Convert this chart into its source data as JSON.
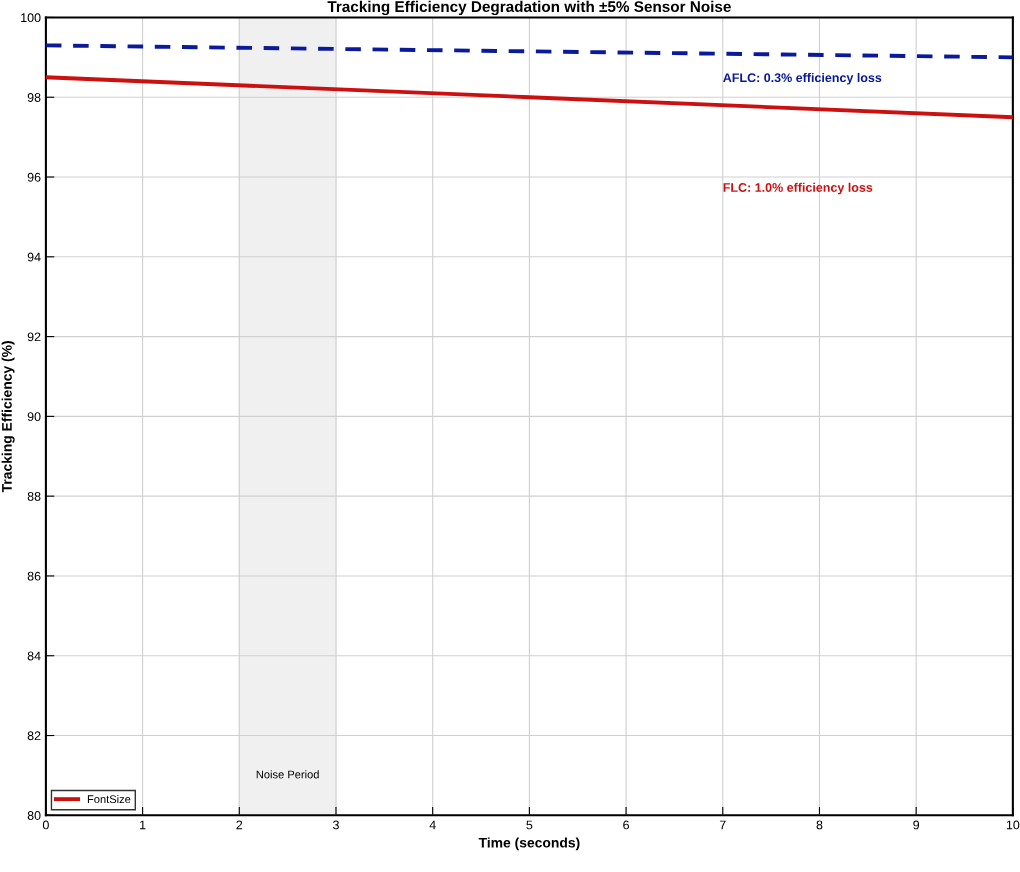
{
  "chart_data": {
    "type": "line",
    "title": "Tracking Efficiency Degradation with ±5% Sensor Noise",
    "xlabel": "Time (seconds)",
    "ylabel": "Tracking Efficiency (%)",
    "x": [
      0,
      5,
      10
    ],
    "series": [
      {
        "color": "#0a1a9a",
        "values": [
          99.3,
          99.15,
          99.0
        ],
        "line_style": "dashed"
      },
      {
        "name": "FontSize",
        "color": "#cc1010",
        "values": [
          98.5,
          98.0,
          97.5
        ],
        "line_style": "solid"
      }
    ],
    "xlim": [
      0,
      10
    ],
    "ylim": [
      80,
      100
    ],
    "xticks": [
      0,
      1,
      2,
      3,
      4,
      5,
      6,
      7,
      8,
      9,
      10
    ],
    "yticks": [
      80,
      82,
      84,
      86,
      88,
      90,
      92,
      94,
      96,
      98,
      100
    ],
    "bands": [
      {
        "axis": "x",
        "from": 2,
        "to": 3,
        "label": "Noise Period",
        "color": "#f0f0f0"
      }
    ],
    "annotations": [
      "AFLC: 0.3% efficiency loss",
      "FLC: 1.0% efficiency loss"
    ],
    "grid": true,
    "legend": "bottom left",
    "marker": "none"
  }
}
